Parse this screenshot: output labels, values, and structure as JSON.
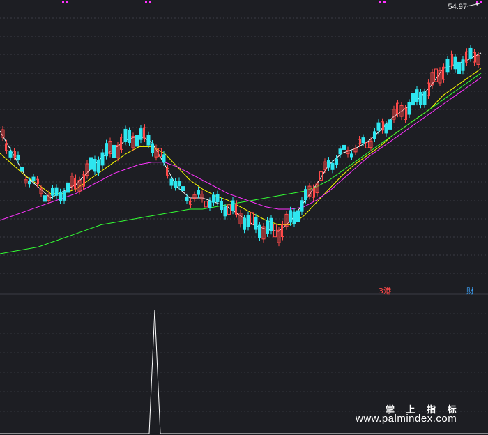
{
  "price_label": "54.97",
  "markers": {
    "gang": "3港",
    "cai": "财"
  },
  "watermark": {
    "title": "掌 上 指 标",
    "url": "www.palmindex.com"
  },
  "colors": {
    "background": "#1d1e23",
    "up": "#ff4a4a",
    "down": "#2ee6f0",
    "ma_short": "#ffffff",
    "ma_mid": "#ffff00",
    "ma_long": "#ff33ff",
    "ma_extra": "#33ff33",
    "markers": "#ff33ff"
  },
  "chart_data": {
    "type": "line",
    "series": [
      {
        "color": "#ffffff",
        "values": [
          0.6,
          0.5,
          0.4,
          0.35,
          0.3,
          0.33,
          0.36,
          0.42,
          0.48,
          0.52,
          0.56,
          0.58,
          0.55,
          0.45,
          0.35,
          0.3,
          0.3,
          0.28,
          0.26,
          0.22,
          0.18,
          0.16,
          0.15,
          0.2,
          0.28,
          0.36,
          0.45,
          0.5,
          0.52,
          0.55,
          0.6,
          0.66,
          0.7,
          0.74,
          0.8,
          0.88,
          0.9,
          0.92,
          0.95
        ]
      },
      {
        "color": "#ffff00",
        "values": [
          0.5,
          0.45,
          0.4,
          0.36,
          0.32,
          0.32,
          0.34,
          0.38,
          0.42,
          0.46,
          0.5,
          0.53,
          0.53,
          0.5,
          0.44,
          0.38,
          0.34,
          0.31,
          0.29,
          0.26,
          0.23,
          0.2,
          0.18,
          0.18,
          0.22,
          0.28,
          0.34,
          0.4,
          0.45,
          0.49,
          0.53,
          0.58,
          0.62,
          0.66,
          0.7,
          0.76,
          0.8,
          0.84,
          0.88
        ]
      },
      {
        "color": "#ff33ff",
        "values": [
          0.2,
          0.22,
          0.24,
          0.26,
          0.28,
          0.3,
          0.32,
          0.35,
          0.38,
          0.41,
          0.43,
          0.45,
          0.46,
          0.46,
          0.44,
          0.41,
          0.38,
          0.35,
          0.32,
          0.3,
          0.28,
          0.26,
          0.25,
          0.25,
          0.26,
          0.29,
          0.33,
          0.38,
          0.43,
          0.48,
          0.52,
          0.56,
          0.6,
          0.64,
          0.68,
          0.72,
          0.76,
          0.8,
          0.84
        ]
      },
      {
        "color": "#33ff33",
        "values": [
          0.05,
          0.06,
          0.07,
          0.08,
          0.1,
          0.12,
          0.14,
          0.16,
          0.18,
          0.19,
          0.2,
          0.21,
          0.22,
          0.23,
          0.24,
          0.25,
          0.25,
          0.26,
          0.27,
          0.28,
          0.29,
          0.3,
          0.31,
          0.32,
          0.33,
          0.35,
          0.38,
          0.42,
          0.46,
          0.5,
          0.54,
          0.58,
          0.62,
          0.66,
          0.7,
          0.74,
          0.78,
          0.82,
          0.86
        ]
      }
    ],
    "indicator": {
      "values": [
        0,
        0,
        1,
        0,
        0
      ]
    }
  }
}
